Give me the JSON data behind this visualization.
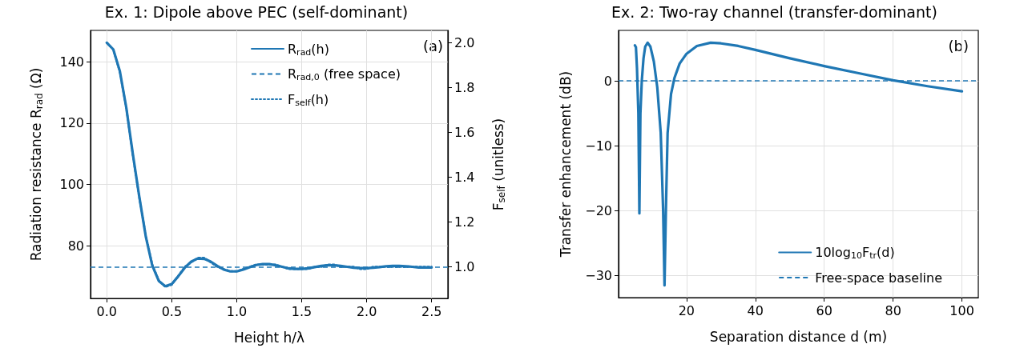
{
  "chart_data": [
    {
      "type": "line",
      "title": "Ex. 1: Dipole above PEC (self-dominant)",
      "xlabel": "Height h/λ",
      "ylabel": "Radiation resistance R$_{rad}$ (Ω)",
      "y2label": "F$_{self}$ (unitless)",
      "annotations": [
        "(a)"
      ],
      "x": [
        0,
        0.05,
        0.1,
        0.15,
        0.2,
        0.25,
        0.3,
        0.35,
        0.4,
        0.45,
        0.5,
        0.55,
        0.6,
        0.65,
        0.7,
        0.75,
        0.8,
        0.85,
        0.9,
        0.95,
        1.0,
        1.05,
        1.1,
        1.15,
        1.2,
        1.25,
        1.3,
        1.35,
        1.4,
        1.45,
        1.5,
        1.55,
        1.6,
        1.65,
        1.7,
        1.75,
        1.8,
        1.85,
        1.9,
        1.95,
        2.0,
        2.05,
        2.1,
        2.15,
        2.2,
        2.25,
        2.3,
        2.35,
        2.4,
        2.45,
        2.5
      ],
      "series": [
        {
          "name": "R$_{rad}$(h)",
          "color": "#1f77b4",
          "line_style": "solid",
          "values": [
            146.2,
            144,
            137,
            125,
            110,
            96,
            83,
            73.5,
            68.5,
            66.8,
            67.5,
            70,
            72.8,
            74.8,
            75.8,
            75.7,
            74.8,
            73.4,
            72.2,
            71.6,
            71.6,
            72.2,
            73,
            73.7,
            74,
            74,
            73.6,
            73.1,
            72.6,
            72.4,
            72.4,
            72.6,
            73,
            73.4,
            73.6,
            73.6,
            73.4,
            73.1,
            72.8,
            72.7,
            72.7,
            72.8,
            73,
            73.3,
            73.4,
            73.4,
            73.3,
            73.1,
            72.9,
            72.9,
            72.9
          ]
        },
        {
          "name": "F$_{self}$(h)",
          "color": "#1f77b4",
          "line_style": "dotted",
          "axis": "y2",
          "values": [
            2.0,
            1.97,
            1.87,
            1.71,
            1.5,
            1.31,
            1.14,
            1.01,
            0.94,
            0.91,
            0.92,
            0.96,
            1.0,
            1.02,
            1.04,
            1.04,
            1.02,
            1.0,
            0.99,
            0.98,
            0.98,
            0.99,
            1.0,
            1.01,
            1.01,
            1.01,
            1.01,
            1.0,
            0.99,
            0.99,
            0.99,
            0.99,
            1.0,
            1.0,
            1.01,
            1.01,
            1.0,
            1.0,
            1.0,
            0.99,
            0.99,
            1.0,
            1.0,
            1.0,
            1.0,
            1.0,
            1.0,
            1.0,
            1.0,
            1.0,
            1.0
          ]
        }
      ],
      "ref_lines": [
        {
          "axis": "y",
          "value": 73.1,
          "label": "R$_{rad,0}$ (free space)",
          "color": "#1f77b4",
          "line_style": "dashed"
        }
      ],
      "xlim": [
        -0.125,
        2.625
      ],
      "ylim": [
        62.8,
        150.2
      ],
      "y2lim": [
        0.859,
        2.055
      ],
      "xticks": [
        {
          "value": 0,
          "label": "0.0"
        },
        0.5,
        {
          "value": 1,
          "label": "1.0"
        },
        1.5,
        {
          "value": 2,
          "label": "2.0"
        },
        2.5
      ],
      "yticks": [
        80,
        100,
        120,
        140
      ],
      "y2ticks": [
        {
          "value": 1,
          "label": "1.0"
        },
        1.2,
        1.4,
        1.6,
        1.8,
        {
          "value": 2,
          "label": "2.0"
        }
      ],
      "grid": true,
      "legend": "top right",
      "marker": "none"
    },
    {
      "type": "line",
      "title": "Ex. 2: Two-ray channel (transfer-dominant)",
      "xlabel": "Separation distance d (m)",
      "ylabel": "Transfer enhancement (dB)",
      "annotations": [
        "(b)"
      ],
      "x": [
        5,
        5.3,
        5.6,
        6,
        6.3,
        6.6,
        7,
        7.5,
        8,
        8.7,
        9.5,
        10.5,
        11.5,
        12.5,
        13.2,
        13.6,
        14,
        14.5,
        15.5,
        16.5,
        18,
        20,
        23,
        27,
        30,
        35,
        40,
        50,
        60,
        70,
        80,
        90,
        100
      ],
      "series": [
        {
          "name": "10log$_{10}$F$_{tr}$(d)",
          "color": "#1f77b4",
          "line_style": "solid",
          "values": [
            5.5,
            5.2,
            2,
            -5,
            -20.4,
            -5,
            0,
            3.5,
            5.3,
            5.9,
            5.3,
            3,
            -1,
            -8,
            -20,
            -31.5,
            -20,
            -8,
            -2,
            0.5,
            2.7,
            4.2,
            5.4,
            5.9,
            5.8,
            5.4,
            4.8,
            3.5,
            2.3,
            1.2,
            0.1,
            -0.8,
            -1.6
          ]
        }
      ],
      "ref_lines": [
        {
          "axis": "y",
          "value": 0,
          "label": "Free-space baseline",
          "color": "#1f77b4",
          "line_style": "dashed"
        }
      ],
      "xlim": [
        0.25,
        104.75
      ],
      "ylim": [
        -33.4,
        7.8
      ],
      "xticks": [
        20,
        40,
        60,
        80,
        100
      ],
      "yticks": [
        {
          "value": -30,
          "label": "−30"
        },
        {
          "value": -20,
          "label": "−20"
        },
        {
          "value": -10,
          "label": "−10"
        },
        0
      ],
      "grid": true,
      "legend": "bottom right",
      "marker": "none"
    }
  ]
}
